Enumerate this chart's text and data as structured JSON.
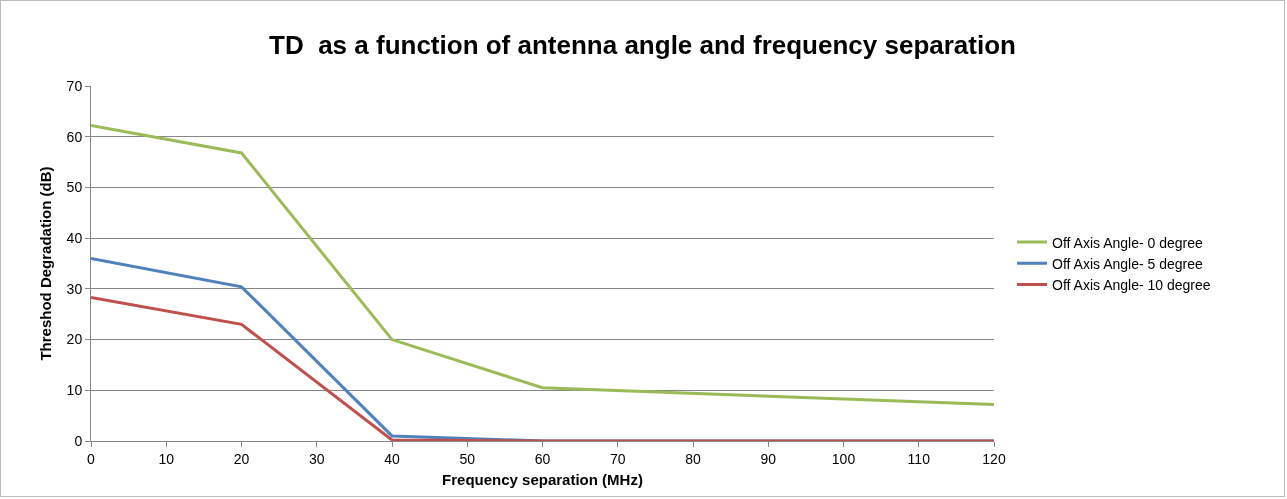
{
  "chart_data": {
    "type": "line",
    "title": "TD  as a function of antenna angle and frequency separation",
    "xlabel": "Frequency separation (MHz)",
    "ylabel": "Threshod Degradation (dB)",
    "x": [
      0,
      20,
      40,
      60,
      120
    ],
    "series": [
      {
        "name": "Off Axis Angle- 0 degree",
        "color": "#9bbb59",
        "values": [
          62.2,
          56.8,
          20,
          10.5,
          7.2
        ]
      },
      {
        "name": "Off Axis Angle- 5 degree",
        "color": "#4f81bd",
        "values": [
          36,
          30.4,
          1,
          0,
          0
        ]
      },
      {
        "name": "Off Axis Angle- 10 degree",
        "color": "#c0504d",
        "values": [
          28.3,
          23,
          0.2,
          0,
          0
        ]
      }
    ],
    "xlim": [
      0,
      120
    ],
    "xticks": [
      0,
      10,
      20,
      30,
      40,
      50,
      60,
      70,
      80,
      90,
      100,
      110,
      120
    ],
    "ylim": [
      0,
      70
    ],
    "yticks": [
      0,
      10,
      20,
      30,
      40,
      50,
      60,
      70
    ],
    "grid": "y",
    "legend": "right",
    "marker": "none",
    "line_style": "solid"
  }
}
